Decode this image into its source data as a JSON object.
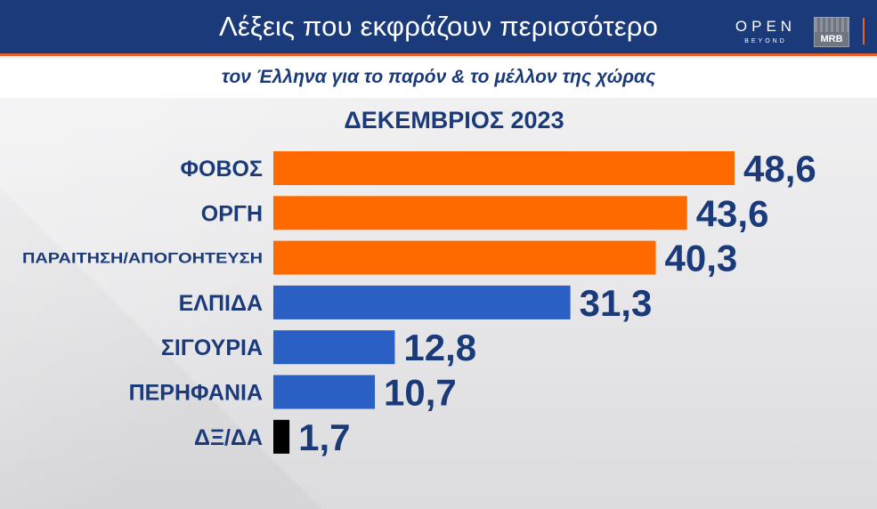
{
  "header": {
    "title": "Λέξεις που εκφράζουν περισσότερο",
    "subtitle": "τον Έλληνα για το παρόν & το μέλλον της χώρας",
    "logo_open": "OPEN",
    "logo_beyond": "BEYOND",
    "logo_mrb": "MRB"
  },
  "chart_data": {
    "type": "bar",
    "orientation": "horizontal",
    "title": "ΔΕΚΕΜΒΡΙΟΣ 2023",
    "categories": [
      "ΦΟΒΟΣ",
      "ΟΡΓΗ",
      "ΠΑΡΑΙΤΗΣΗ/ΑΠΟΓΟΗΤΕΥΣΗ",
      "ΕΛΠΙΔΑ",
      "ΣΙΓΟΥΡΙΑ",
      "ΠΕΡΗΦΑΝΙΑ",
      "ΔΞ/ΔΑ"
    ],
    "values": [
      48.6,
      43.6,
      40.3,
      31.3,
      12.8,
      10.7,
      1.7
    ],
    "value_labels": [
      "48,6",
      "43,6",
      "40,3",
      "31,3",
      "12,8",
      "10,7",
      "1,7"
    ],
    "bar_colors": [
      "#ff6a00",
      "#ff6a00",
      "#ff6a00",
      "#2a5fc4",
      "#2a5fc4",
      "#2a5fc4",
      "#000000"
    ],
    "label_color": "#1b3a7a",
    "xlim": [
      0,
      48.6
    ],
    "grid": false,
    "legend": "none"
  }
}
